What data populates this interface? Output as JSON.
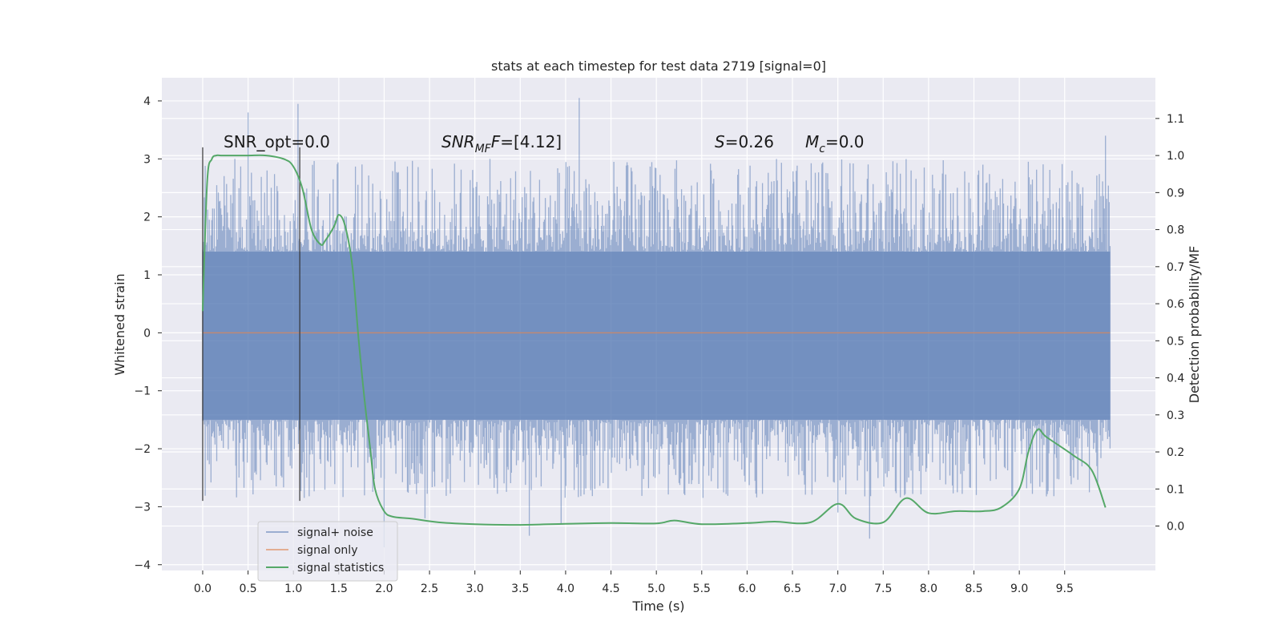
{
  "chart_data": {
    "type": "line",
    "title": "stats at each timestep for test data 2719 [signal=0]",
    "xlabel": "Time (s)",
    "ylabel": "Whitened strain",
    "y2label": "Detection probability/MF",
    "xlim": [
      -0.45,
      10.5
    ],
    "ylim": [
      -4.1,
      4.4
    ],
    "y2lim": [
      -0.12,
      1.21
    ],
    "xticks": [
      0.0,
      0.5,
      1.0,
      1.5,
      2.0,
      2.5,
      3.0,
      3.5,
      4.0,
      4.5,
      5.0,
      5.5,
      6.0,
      6.5,
      7.0,
      7.5,
      8.0,
      8.5,
      9.0,
      9.5
    ],
    "xtick_labels": [
      "0.0",
      "0.5",
      "1.0",
      "1.5",
      "2.0",
      "2.5",
      "3.0",
      "3.5",
      "4.0",
      "4.5",
      "5.0",
      "5.5",
      "6.0",
      "6.5",
      "7.0",
      "7.5",
      "8.0",
      "8.5",
      "9.0",
      "9.5"
    ],
    "yticks": [
      -4,
      -3,
      -2,
      -1,
      0,
      1,
      2,
      3,
      4
    ],
    "ytick_labels": [
      "−4",
      "−3",
      "−2",
      "−1",
      "0",
      "1",
      "2",
      "3",
      "4"
    ],
    "y2ticks": [
      0.0,
      0.1,
      0.2,
      0.3,
      0.4,
      0.5,
      0.6,
      0.7,
      0.8,
      0.9,
      1.0,
      1.1
    ],
    "y2tick_labels": [
      "0.0",
      "0.1",
      "0.2",
      "0.3",
      "0.4",
      "0.5",
      "0.6",
      "0.7",
      "0.8",
      "0.9",
      "1.0",
      "1.1"
    ],
    "grid": true,
    "legend_position": "lower-left",
    "series": [
      {
        "name": "signal+ noise",
        "color": "#4c72b0",
        "axis": "left",
        "style": "noise-band",
        "x_range": [
          0.0,
          10.0
        ],
        "envelope_approx": [
          -1.5,
          1.4
        ],
        "extreme_points": [
          {
            "x": 0.5,
            "y": 3.8
          },
          {
            "x": 1.05,
            "y": 3.95
          },
          {
            "x": 2.0,
            "y": -3.7
          },
          {
            "x": 2.45,
            "y": -3.2
          },
          {
            "x": 3.6,
            "y": -3.5
          },
          {
            "x": 3.95,
            "y": -3.3
          },
          {
            "x": 4.15,
            "y": 4.05
          },
          {
            "x": 7.0,
            "y": -3.1
          },
          {
            "x": 7.35,
            "y": -3.55
          },
          {
            "x": 9.95,
            "y": 3.4
          }
        ]
      },
      {
        "name": "signal only",
        "color": "#dd8452",
        "axis": "left",
        "x": [
          0.0,
          10.0
        ],
        "y": [
          0.0,
          0.0
        ]
      },
      {
        "name": "signal statistics",
        "color": "#55a868",
        "axis": "right",
        "x": [
          0.0,
          0.05,
          0.1,
          0.15,
          0.2,
          0.3,
          0.5,
          0.7,
          0.9,
          1.0,
          1.1,
          1.2,
          1.3,
          1.35,
          1.45,
          1.5,
          1.57,
          1.65,
          1.72,
          1.78,
          1.85,
          1.9,
          2.0,
          2.1,
          2.3,
          2.6,
          3.0,
          3.5,
          4.0,
          4.5,
          5.0,
          5.2,
          5.5,
          6.0,
          6.3,
          6.7,
          7.0,
          7.2,
          7.5,
          7.75,
          8.0,
          8.3,
          8.6,
          8.8,
          9.0,
          9.1,
          9.2,
          9.3,
          9.6,
          9.8,
          9.95
        ],
        "y": [
          0.58,
          0.93,
          0.99,
          1.0,
          1.0,
          1.0,
          1.0,
          1.0,
          0.99,
          0.97,
          0.91,
          0.8,
          0.76,
          0.77,
          0.81,
          0.84,
          0.81,
          0.7,
          0.5,
          0.35,
          0.2,
          0.1,
          0.04,
          0.025,
          0.02,
          0.01,
          0.005,
          0.003,
          0.006,
          0.008,
          0.007,
          0.015,
          0.005,
          0.008,
          0.012,
          0.01,
          0.06,
          0.02,
          0.01,
          0.075,
          0.035,
          0.04,
          0.04,
          0.05,
          0.1,
          0.2,
          0.26,
          0.24,
          0.19,
          0.15,
          0.05
        ]
      }
    ],
    "vertical_markers": [
      {
        "x": 0.0,
        "y_from": -2.9,
        "y_to": 3.2
      },
      {
        "x": 1.07,
        "y_from": -2.9,
        "y_to": 3.2
      }
    ],
    "annotations": [
      {
        "text": "SNR_opt=0.0"
      },
      {
        "text": "SNR",
        "sub": "MF",
        "suffix": "=[4.12]",
        "italic": true
      },
      {
        "text": "S",
        "suffix": "=0.26",
        "italic": true
      },
      {
        "text": "M",
        "sub": "c",
        "suffix": "=0.0",
        "italic": true
      }
    ]
  }
}
